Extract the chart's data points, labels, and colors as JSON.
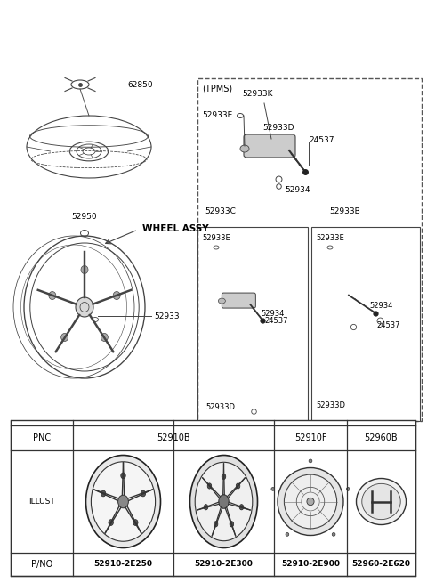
{
  "bg_color": "#ffffff",
  "text_color": "#000000",
  "line_color": "#444444",
  "lw": 0.8,
  "fs_label": 6.5,
  "fs_mid": 7.0,
  "fs_small": 6.5,
  "diagram": {
    "clamp_label": "62850",
    "wheel_assy_label": "WHEEL ASSY",
    "labels_left": [
      "52933",
      "52950"
    ],
    "tpms_label": "(TPMS)",
    "tpms_parts_main": [
      "52933K",
      "52933E",
      "52933D",
      "24537",
      "52934",
      "52933C",
      "52933B"
    ],
    "tpms_parts_left": [
      "52933E",
      "52934",
      "24537",
      "52933D"
    ],
    "tpms_parts_right": [
      "52933E",
      "52934",
      "24537",
      "52933D"
    ],
    "table_pnc": [
      "52910B",
      "52910F",
      "52960B"
    ],
    "table_pno": [
      "52910-2E250",
      "52910-2E300",
      "52910-2E900",
      "52960-2E620"
    ],
    "table_row_labels": [
      "PNC",
      "ILLUST",
      "P/NO"
    ]
  }
}
